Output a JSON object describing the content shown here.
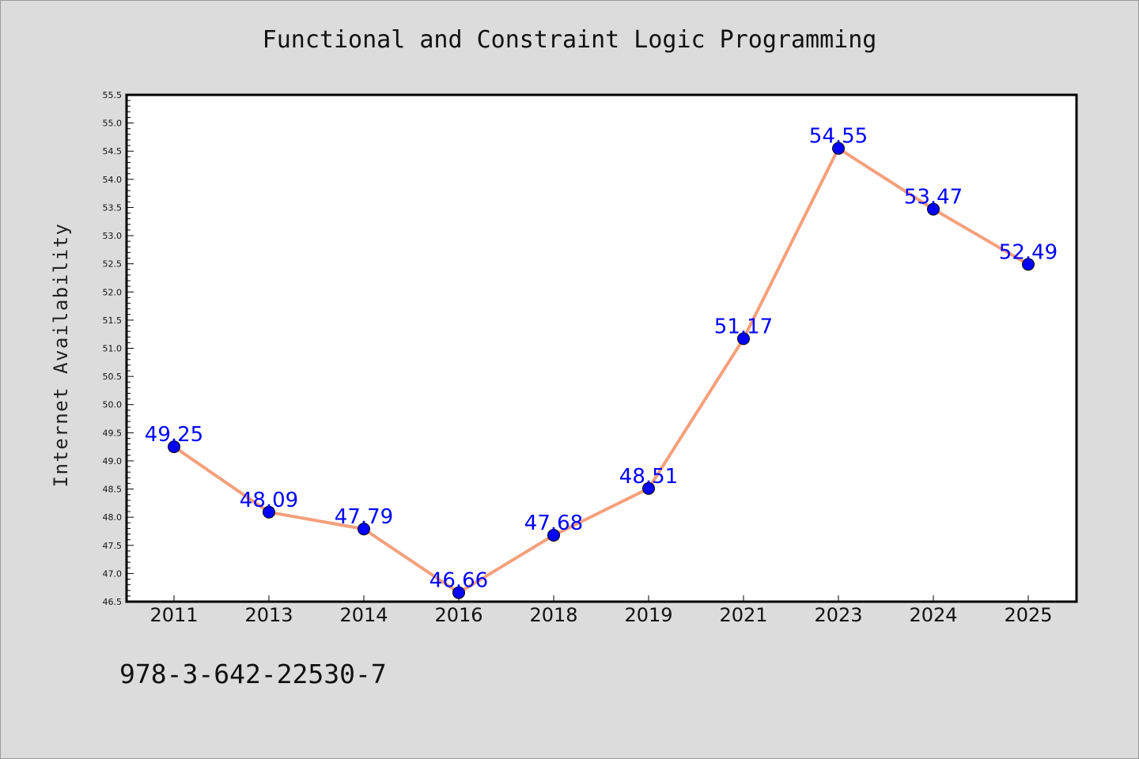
{
  "chart_data": {
    "type": "line",
    "title": "Functional and Constraint Logic Programming",
    "xlabel": "",
    "ylabel": "Internet Availability",
    "categories": [
      "2011",
      "2013",
      "2014",
      "2016",
      "2018",
      "2019",
      "2021",
      "2023",
      "2024",
      "2025"
    ],
    "series": [
      {
        "values": [
          49.25,
          48.09,
          47.79,
          46.66,
          47.68,
          48.51,
          51.17,
          54.55,
          53.47,
          52.49
        ],
        "data_labels": [
          "49.25",
          "48.09",
          "47.79",
          "46.66",
          "47.68",
          "48.51",
          "51.17",
          "54.55",
          "53.47",
          "52.49"
        ]
      }
    ],
    "ylim": [
      46.5,
      55.5
    ],
    "yticks": [
      "46.5",
      "47.0",
      "47.5",
      "48.0",
      "48.5",
      "49.0",
      "49.5",
      "50.0",
      "50.5",
      "51.0",
      "51.5",
      "52.0",
      "52.5",
      "53.0",
      "53.5",
      "54.0",
      "54.5",
      "55.0",
      "55.5"
    ],
    "grid": false,
    "legend": "none",
    "colors": {
      "line": "#f4a07c",
      "marker": "#0000ff",
      "marker_edge": "#000000",
      "data_label": "#0000ff",
      "background": "#dcdcdc",
      "plot_background": "#ffffff"
    }
  },
  "footer": {
    "isbn": "978-3-642-22530-7"
  }
}
